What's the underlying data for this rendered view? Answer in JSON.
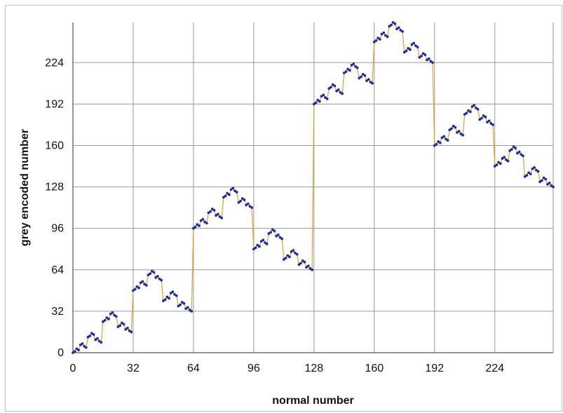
{
  "chart_data": {
    "type": "line",
    "title": "",
    "xlabel": "normal  number",
    "ylabel": "grey encoded number",
    "xlim": [
      0,
      255
    ],
    "ylim": [
      0,
      255
    ],
    "x_ticks": [
      0,
      32,
      64,
      96,
      128,
      160,
      192,
      224
    ],
    "y_ticks": [
      0,
      32,
      64,
      96,
      128,
      160,
      192,
      224
    ],
    "grid": true,
    "legend": "none",
    "series": [
      {
        "name": "",
        "color": "#d9a23a",
        "marker_color": "#1f2f8a",
        "x": [
          0,
          1,
          2,
          3,
          4,
          5,
          6,
          7,
          8,
          9,
          10,
          11,
          12,
          13,
          14,
          15,
          16,
          17,
          18,
          19,
          20,
          21,
          22,
          23,
          24,
          25,
          26,
          27,
          28,
          29,
          30,
          31,
          32,
          33,
          34,
          35,
          36,
          37,
          38,
          39,
          40,
          41,
          42,
          43,
          44,
          45,
          46,
          47,
          48,
          49,
          50,
          51,
          52,
          53,
          54,
          55,
          56,
          57,
          58,
          59,
          60,
          61,
          62,
          63,
          64,
          65,
          66,
          67,
          68,
          69,
          70,
          71,
          72,
          73,
          74,
          75,
          76,
          77,
          78,
          79,
          80,
          81,
          82,
          83,
          84,
          85,
          86,
          87,
          88,
          89,
          90,
          91,
          92,
          93,
          94,
          95,
          96,
          97,
          98,
          99,
          100,
          101,
          102,
          103,
          104,
          105,
          106,
          107,
          108,
          109,
          110,
          111,
          112,
          113,
          114,
          115,
          116,
          117,
          118,
          119,
          120,
          121,
          122,
          123,
          124,
          125,
          126,
          127,
          128,
          129,
          130,
          131,
          132,
          133,
          134,
          135,
          136,
          137,
          138,
          139,
          140,
          141,
          142,
          143,
          144,
          145,
          146,
          147,
          148,
          149,
          150,
          151,
          152,
          153,
          154,
          155,
          156,
          157,
          158,
          159,
          160,
          161,
          162,
          163,
          164,
          165,
          166,
          167,
          168,
          169,
          170,
          171,
          172,
          173,
          174,
          175,
          176,
          177,
          178,
          179,
          180,
          181,
          182,
          183,
          184,
          185,
          186,
          187,
          188,
          189,
          190,
          191,
          192,
          193,
          194,
          195,
          196,
          197,
          198,
          199,
          200,
          201,
          202,
          203,
          204,
          205,
          206,
          207,
          208,
          209,
          210,
          211,
          212,
          213,
          214,
          215,
          216,
          217,
          218,
          219,
          220,
          221,
          222,
          223,
          224,
          225,
          226,
          227,
          228,
          229,
          230,
          231,
          232,
          233,
          234,
          235,
          236,
          237,
          238,
          239,
          240,
          241,
          242,
          243,
          244,
          245,
          246,
          247,
          248,
          249,
          250,
          251,
          252,
          253,
          254,
          255
        ],
        "values": [
          0,
          1,
          3,
          2,
          6,
          7,
          5,
          4,
          12,
          13,
          15,
          14,
          10,
          11,
          9,
          8,
          24,
          25,
          27,
          26,
          30,
          31,
          29,
          28,
          20,
          21,
          23,
          22,
          18,
          19,
          17,
          16,
          48,
          49,
          51,
          50,
          54,
          55,
          53,
          52,
          60,
          61,
          63,
          62,
          58,
          59,
          57,
          56,
          40,
          41,
          43,
          42,
          46,
          47,
          45,
          44,
          36,
          37,
          39,
          38,
          34,
          35,
          33,
          32,
          96,
          97,
          99,
          98,
          102,
          103,
          101,
          100,
          108,
          109,
          111,
          110,
          106,
          107,
          105,
          104,
          120,
          121,
          123,
          122,
          126,
          127,
          125,
          124,
          116,
          117,
          119,
          118,
          114,
          115,
          113,
          112,
          80,
          81,
          83,
          82,
          86,
          87,
          85,
          84,
          92,
          93,
          95,
          94,
          90,
          91,
          89,
          88,
          72,
          73,
          75,
          74,
          78,
          79,
          77,
          76,
          68,
          69,
          71,
          70,
          66,
          67,
          65,
          64,
          192,
          193,
          195,
          194,
          198,
          199,
          197,
          196,
          204,
          205,
          207,
          206,
          202,
          203,
          201,
          200,
          216,
          217,
          219,
          218,
          222,
          223,
          221,
          220,
          212,
          213,
          215,
          214,
          210,
          211,
          209,
          208,
          240,
          241,
          243,
          242,
          246,
          247,
          245,
          244,
          252,
          253,
          255,
          254,
          250,
          251,
          249,
          248,
          232,
          233,
          235,
          234,
          238,
          239,
          237,
          236,
          228,
          229,
          231,
          230,
          226,
          227,
          225,
          224,
          160,
          161,
          163,
          162,
          166,
          167,
          165,
          164,
          172,
          173,
          175,
          174,
          170,
          171,
          169,
          168,
          184,
          185,
          187,
          186,
          190,
          191,
          189,
          188,
          180,
          181,
          183,
          182,
          178,
          179,
          177,
          176,
          144,
          145,
          147,
          146,
          150,
          151,
          149,
          148,
          156,
          157,
          159,
          158,
          154,
          155,
          153,
          152,
          136,
          137,
          139,
          138,
          142,
          143,
          141,
          140,
          132,
          133,
          135,
          134,
          130,
          131,
          129,
          128
        ]
      }
    ]
  }
}
